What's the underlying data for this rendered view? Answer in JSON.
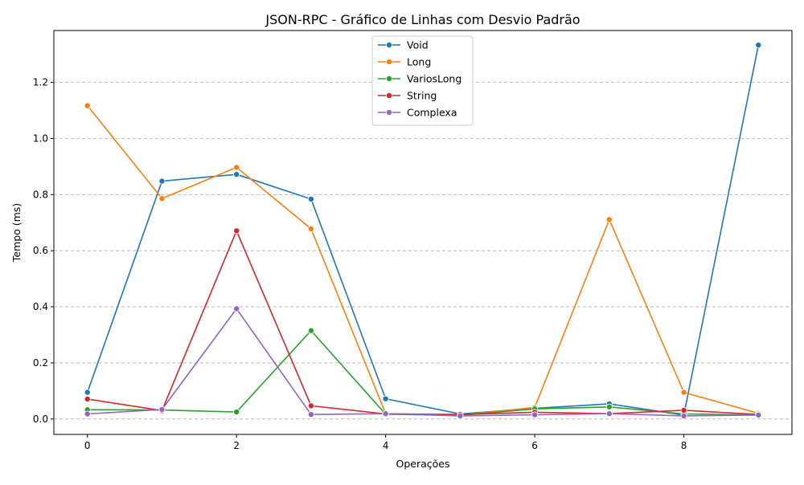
{
  "chart_data": {
    "type": "line",
    "title": "JSON-RPC - Gráfico de Linhas com Desvio Padrão",
    "xlabel": "Operações",
    "ylabel": "Tempo (ms)",
    "x": [
      0,
      1,
      2,
      3,
      4,
      5,
      6,
      7,
      8,
      9
    ],
    "xticks": [
      "0",
      "2",
      "4",
      "6",
      "8"
    ],
    "xlim": [
      -0.45,
      9.45
    ],
    "yticks": [
      "0.0",
      "0.2",
      "0.4",
      "0.6",
      "0.8",
      "1.0",
      "1.2"
    ],
    "ylim": [
      -0.055,
      1.385
    ],
    "grid": "horizontal-dashed",
    "legend_position": "top-center",
    "series": [
      {
        "name": "Void",
        "color": "#1f77b4",
        "values": [
          0.095,
          0.848,
          0.872,
          0.784,
          0.072,
          0.018,
          0.038,
          0.054,
          0.014,
          1.333
        ]
      },
      {
        "name": "Long",
        "color": "#ff7f0e",
        "values": [
          1.117,
          0.786,
          0.897,
          0.678,
          0.019,
          0.014,
          0.041,
          0.711,
          0.095,
          0.02
        ]
      },
      {
        "name": "VariosLong",
        "color": "#2ca02c",
        "values": [
          0.033,
          0.032,
          0.025,
          0.315,
          0.017,
          0.013,
          0.036,
          0.043,
          0.018,
          0.014
        ]
      },
      {
        "name": "String",
        "color": "#d62728",
        "values": [
          0.071,
          0.03,
          0.671,
          0.047,
          0.018,
          0.016,
          0.024,
          0.019,
          0.031,
          0.016
        ]
      },
      {
        "name": "Complexa",
        "color": "#9467bd",
        "values": [
          0.018,
          0.034,
          0.393,
          0.016,
          0.019,
          0.011,
          0.015,
          0.019,
          0.011,
          0.014
        ]
      }
    ]
  }
}
